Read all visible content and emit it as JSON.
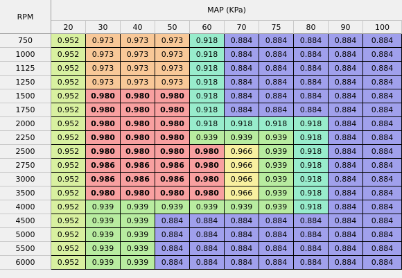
{
  "table": {
    "rpm_header": "RPM",
    "map_header": "MAP (KPa)",
    "columns": [
      "20",
      "30",
      "40",
      "50",
      "60",
      "70",
      "75",
      "80",
      "90",
      "100"
    ],
    "rows": [
      {
        "rpm": "750",
        "values": [
          "0.952",
          "0.973",
          "0.973",
          "0.973",
          "0.918",
          "0.884",
          "0.884",
          "0.884",
          "0.884",
          "0.884"
        ]
      },
      {
        "rpm": "1000",
        "values": [
          "0.952",
          "0.973",
          "0.973",
          "0.973",
          "0.918",
          "0.884",
          "0.884",
          "0.884",
          "0.884",
          "0.884"
        ]
      },
      {
        "rpm": "1125",
        "values": [
          "0.952",
          "0.973",
          "0.973",
          "0.973",
          "0.918",
          "0.884",
          "0.884",
          "0.884",
          "0.884",
          "0.884"
        ]
      },
      {
        "rpm": "1250",
        "values": [
          "0.952",
          "0.973",
          "0.973",
          "0.973",
          "0.918",
          "0.884",
          "0.884",
          "0.884",
          "0.884",
          "0.884"
        ]
      },
      {
        "rpm": "1500",
        "values": [
          "0.952",
          "0.980",
          "0.980",
          "0.980",
          "0.918",
          "0.884",
          "0.884",
          "0.884",
          "0.884",
          "0.884"
        ]
      },
      {
        "rpm": "1750",
        "values": [
          "0.952",
          "0.980",
          "0.980",
          "0.980",
          "0.918",
          "0.884",
          "0.884",
          "0.884",
          "0.884",
          "0.884"
        ]
      },
      {
        "rpm": "2000",
        "values": [
          "0.952",
          "0.980",
          "0.980",
          "0.980",
          "0.918",
          "0.918",
          "0.918",
          "0.918",
          "0.884",
          "0.884"
        ]
      },
      {
        "rpm": "2250",
        "values": [
          "0.952",
          "0.980",
          "0.980",
          "0.980",
          "0.939",
          "0.939",
          "0.939",
          "0.918",
          "0.884",
          "0.884"
        ]
      },
      {
        "rpm": "2500",
        "values": [
          "0.952",
          "0.980",
          "0.980",
          "0.980",
          "0.980",
          "0.966",
          "0.939",
          "0.918",
          "0.884",
          "0.884"
        ]
      },
      {
        "rpm": "2750",
        "values": [
          "0.952",
          "0.986",
          "0.986",
          "0.986",
          "0.980",
          "0.966",
          "0.939",
          "0.918",
          "0.884",
          "0.884"
        ]
      },
      {
        "rpm": "3000",
        "values": [
          "0.952",
          "0.986",
          "0.986",
          "0.986",
          "0.980",
          "0.966",
          "0.939",
          "0.918",
          "0.884",
          "0.884"
        ]
      },
      {
        "rpm": "3500",
        "values": [
          "0.952",
          "0.980",
          "0.980",
          "0.980",
          "0.980",
          "0.966",
          "0.939",
          "0.918",
          "0.884",
          "0.884"
        ]
      },
      {
        "rpm": "4000",
        "values": [
          "0.952",
          "0.939",
          "0.939",
          "0.939",
          "0.939",
          "0.939",
          "0.939",
          "0.918",
          "0.884",
          "0.884"
        ]
      },
      {
        "rpm": "4500",
        "values": [
          "0.952",
          "0.939",
          "0.939",
          "0.884",
          "0.884",
          "0.884",
          "0.884",
          "0.884",
          "0.884",
          "0.884"
        ]
      },
      {
        "rpm": "5000",
        "values": [
          "0.952",
          "0.939",
          "0.939",
          "0.884",
          "0.884",
          "0.884",
          "0.884",
          "0.884",
          "0.884",
          "0.884"
        ]
      },
      {
        "rpm": "5500",
        "values": [
          "0.952",
          "0.939",
          "0.939",
          "0.884",
          "0.884",
          "0.884",
          "0.884",
          "0.884",
          "0.884",
          "0.884"
        ]
      },
      {
        "rpm": "6000",
        "values": [
          "0.952",
          "0.939",
          "0.939",
          "0.884",
          "0.884",
          "0.884",
          "0.884",
          "0.884",
          "0.884",
          "0.884"
        ]
      }
    ]
  },
  "colors": {
    "0.884": "#a0a0ec",
    "0.918": "#98eccc",
    "0.939": "#b8eca0",
    "0.952": "#d8f0a0",
    "0.966": "#f8f0a0",
    "0.973": "#f8c898",
    "0.980": "#f8a0a0",
    "0.986": "#f8a0a0"
  },
  "bold_values": [
    "0.980",
    "0.986"
  ]
}
